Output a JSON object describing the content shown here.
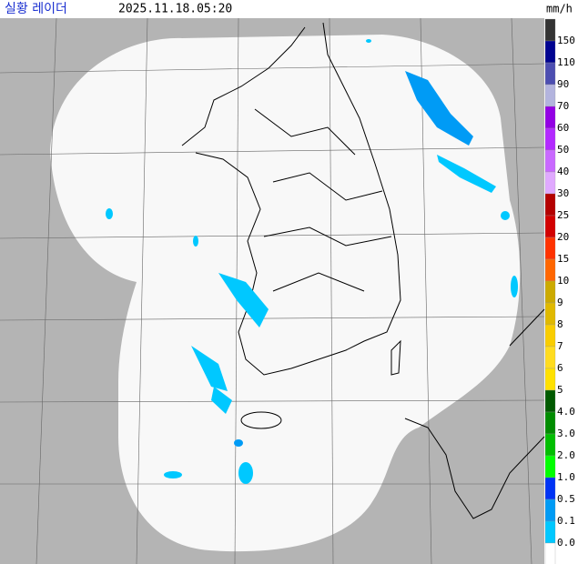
{
  "header": {
    "title": "실황 레이더",
    "time": "2025.11.18.05:20",
    "unit": "mm/h"
  },
  "legend": {
    "levels": [
      "150",
      "110",
      "90",
      "70",
      "60",
      "50",
      "40",
      "30",
      "25",
      "20",
      "15",
      "10",
      "9",
      "8",
      "7",
      "6",
      "5",
      "4.0",
      "3.0",
      "2.0",
      "1.0",
      "0.5",
      "0.1",
      "0.0"
    ],
    "colors": [
      "#333333",
      "#000390",
      "#4c4eb1",
      "#b3b4de",
      "#9300e4",
      "#b329ff",
      "#c969ff",
      "#e0a9ff",
      "#b40000",
      "#d20000",
      "#ff3200",
      "#ff6600",
      "#ccaa00",
      "#e0b900",
      "#f9cd00",
      "#ffdc1f",
      "#ffe100",
      "#005a00",
      "#008c00",
      "#00be00",
      "#00ff00",
      "#0033f5",
      "#009bf5",
      "#00c8ff",
      "#ffffff"
    ]
  }
}
